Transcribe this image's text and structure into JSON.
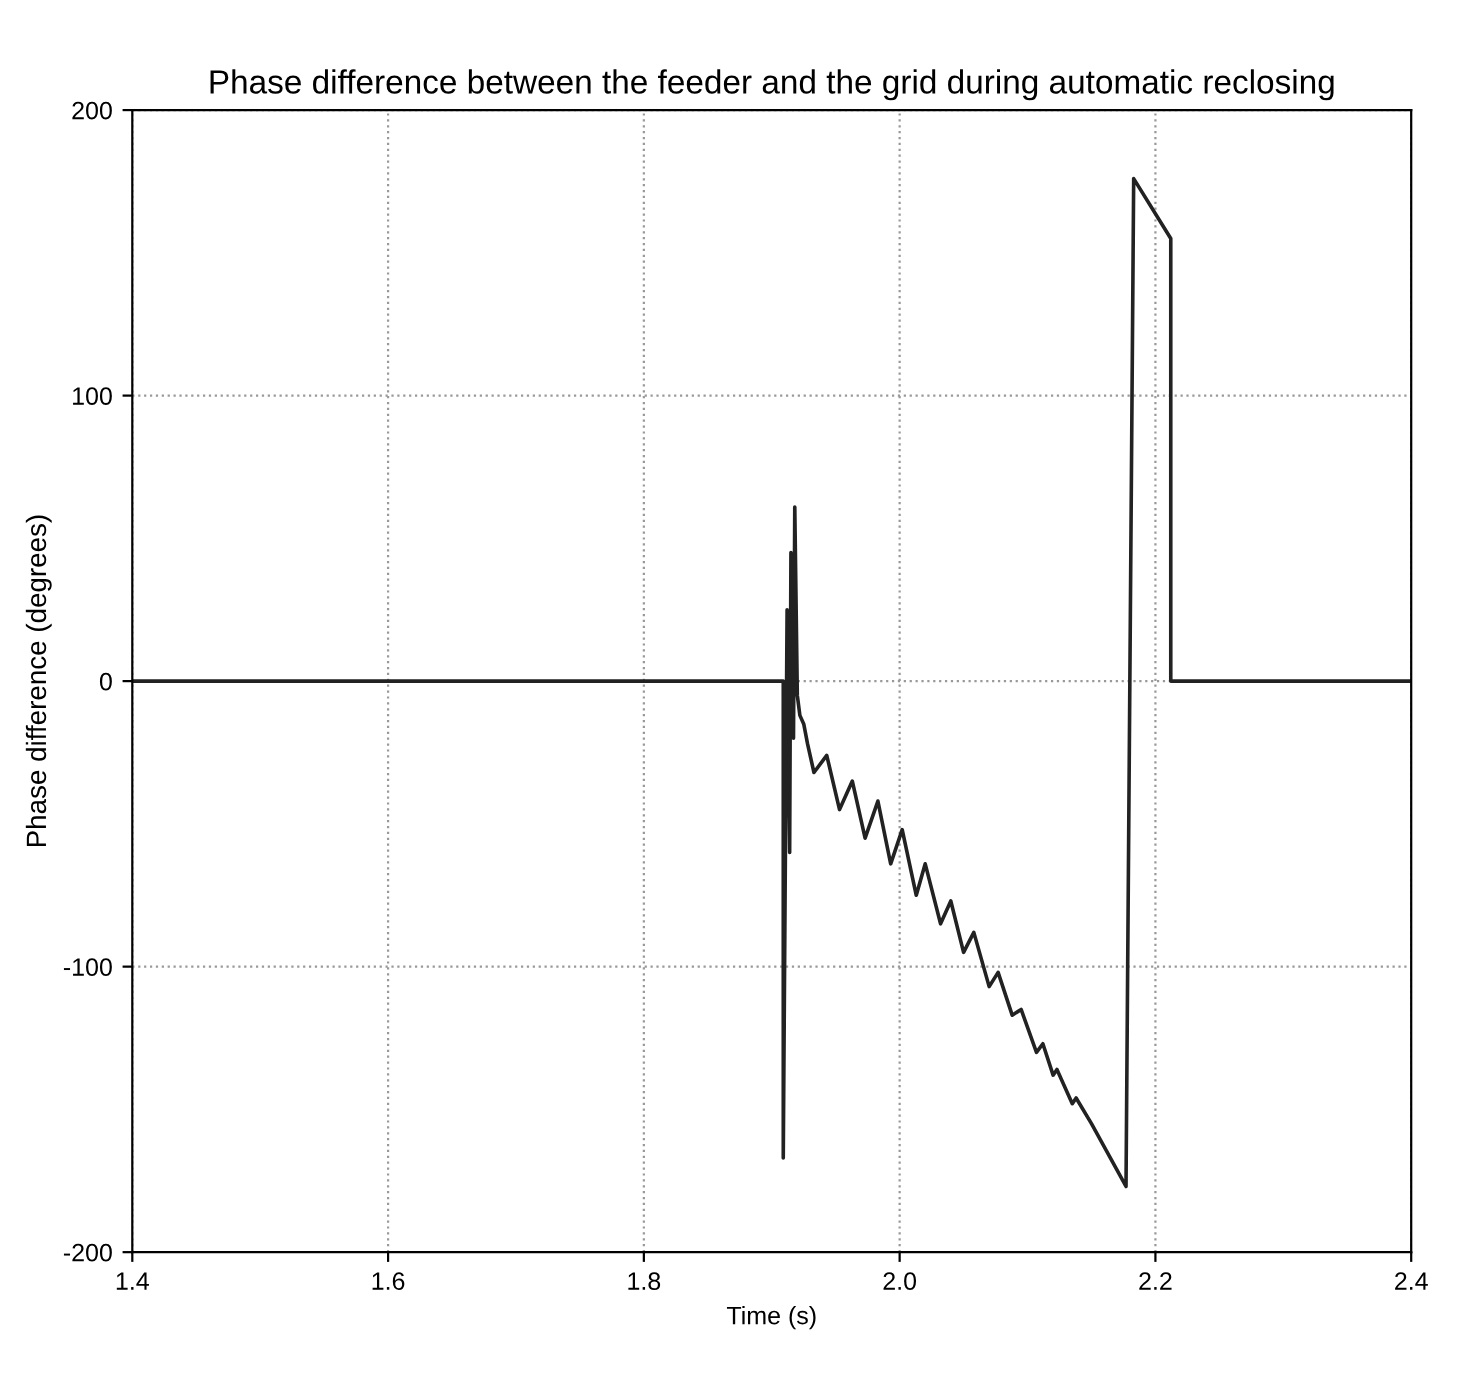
{
  "chart_data": {
    "type": "line",
    "title": "Phase difference between the feeder and the grid during automatic reclosing",
    "xlabel": "Time (s)",
    "ylabel": "Phase difference (degrees)",
    "series": [
      {
        "color": "#222222",
        "x": [
          1.4,
          1.909,
          1.909,
          1.912,
          1.914,
          1.915,
          1.917,
          1.918,
          1.92,
          1.922,
          1.925,
          1.928,
          1.933,
          1.943,
          1.953,
          1.963,
          1.973,
          1.983,
          1.993,
          2.002,
          2.013,
          2.02,
          2.032,
          2.04,
          2.05,
          2.058,
          2.07,
          2.077,
          2.088,
          2.095,
          2.107,
          2.112,
          2.12,
          2.123,
          2.135,
          2.138,
          2.15,
          2.177,
          2.183,
          2.212,
          2.212,
          2.4
        ],
        "values": [
          0,
          0,
          -167,
          25,
          -60,
          45,
          -20,
          61,
          -5,
          -12,
          -15,
          -22,
          -32,
          -26,
          -45,
          -35,
          -55,
          -42,
          -64,
          -52,
          -75,
          -64,
          -85,
          -77,
          -95,
          -88,
          -107,
          -102,
          -117,
          -115,
          -130,
          -127,
          -138,
          -136,
          -148,
          -146,
          -155,
          -177,
          176,
          155,
          0,
          0
        ]
      }
    ],
    "xlim": [
      1.4,
      2.4
    ],
    "ylim": [
      -200,
      200
    ],
    "xticks": [
      {
        "value": 1.4,
        "label": "1.4"
      },
      {
        "value": 1.6,
        "label": "1.6"
      },
      {
        "value": 1.8,
        "label": "1.8"
      },
      {
        "value": 2.0,
        "label": "2.0"
      },
      {
        "value": 2.2,
        "label": "2.2"
      },
      {
        "value": 2.4,
        "label": "2.4"
      }
    ],
    "yticks": [
      -200,
      -100,
      0,
      100,
      200
    ],
    "grid": true,
    "line_style": "solid",
    "marker": "none"
  }
}
